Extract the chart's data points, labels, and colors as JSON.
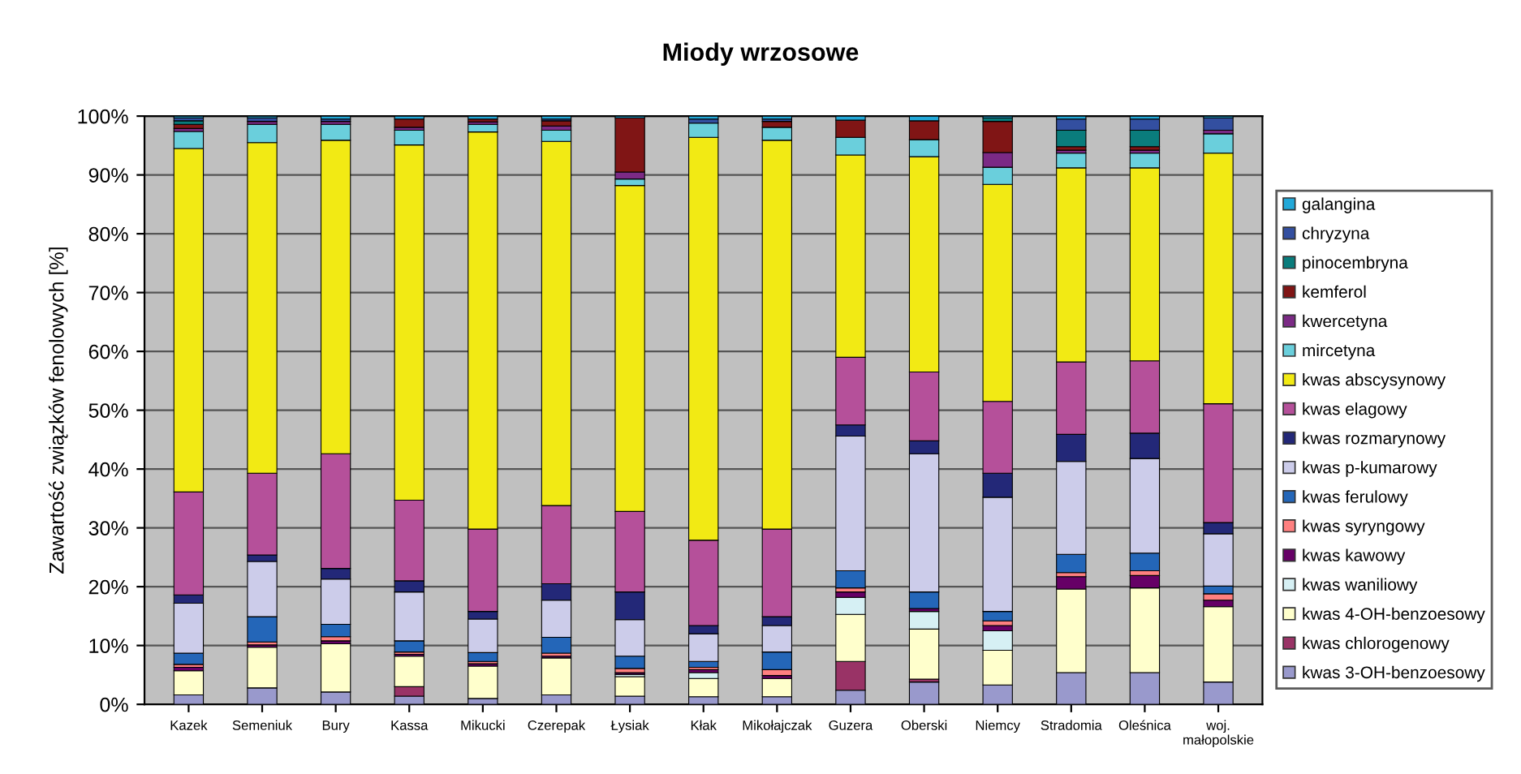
{
  "chart_data": {
    "type": "bar",
    "stacked": true,
    "title": "Miody wrzosowe",
    "ylabel": "Zawartość związków fenolowych [%]",
    "categories": [
      "Kazek",
      "Semeniuk",
      "Bury",
      "Kassa",
      "Mikucki",
      "Czerepak",
      "Łysiak",
      "Kłak",
      "Mikołajczak",
      "Guzera",
      "Oberski",
      "Niemcy",
      "Stradomia",
      "Oleśnica",
      "woj.\nmałopolskie"
    ],
    "ylim": [
      0,
      100
    ],
    "yticks": [
      {
        "value": 0,
        "label": "0%"
      },
      {
        "value": 10,
        "label": "10%"
      },
      {
        "value": 20,
        "label": "20%"
      },
      {
        "value": 30,
        "label": "30%"
      },
      {
        "value": 40,
        "label": "40%"
      },
      {
        "value": 50,
        "label": "50%"
      },
      {
        "value": 60,
        "label": "60%"
      },
      {
        "value": 70,
        "label": "70%"
      },
      {
        "value": 80,
        "label": "80%"
      },
      {
        "value": 90,
        "label": "90%"
      },
      {
        "value": 100,
        "label": "100%"
      }
    ],
    "grid": "y",
    "legend": "right",
    "series": [
      {
        "name": "kwas 3-OH-benzoesowy",
        "color": "#9999cc",
        "values": [
          1.6,
          2.8,
          2.1,
          1.4,
          1.0,
          1.6,
          1.4,
          1.3,
          1.3,
          2.4,
          3.8,
          3.3,
          5.4,
          5.4,
          3.8
        ]
      },
      {
        "name": "kwas chlorogenowy",
        "color": "#993366",
        "values": [
          null,
          null,
          null,
          1.6,
          null,
          null,
          null,
          null,
          null,
          4.9,
          0.5,
          null,
          null,
          null,
          null
        ]
      },
      {
        "name": "kwas 4-OH-benzoesowy",
        "color": "#ffffcc",
        "values": [
          4.1,
          6.9,
          8.2,
          5.2,
          5.5,
          6.3,
          3.3,
          3.1,
          3.1,
          8.0,
          8.5,
          5.9,
          14.2,
          14.4,
          12.8
        ]
      },
      {
        "name": "kwas waniliowy",
        "color": "#d6f0f4",
        "values": [
          null,
          null,
          null,
          null,
          null,
          null,
          0.4,
          1.0,
          null,
          2.9,
          3.0,
          3.3,
          null,
          null,
          null
        ]
      },
      {
        "name": "kwas kawowy",
        "color": "#660066",
        "values": [
          0.6,
          0.4,
          0.5,
          0.3,
          0.4,
          0.3,
          0.3,
          0.5,
          0.5,
          0.9,
          0.5,
          0.9,
          2.1,
          2.1,
          1.1
        ]
      },
      {
        "name": "kwas syryngowy",
        "color": "#ff8080",
        "values": [
          0.5,
          0.5,
          0.7,
          0.4,
          0.4,
          0.5,
          0.7,
          0.4,
          1.0,
          0.7,
          null,
          0.8,
          0.7,
          0.8,
          1.1
        ]
      },
      {
        "name": "kwas ferulowy",
        "color": "#2466b8",
        "values": [
          1.9,
          4.3,
          2.1,
          1.9,
          1.5,
          2.7,
          2.1,
          1.0,
          3.0,
          2.9,
          2.8,
          1.6,
          3.1,
          3.0,
          1.3
        ]
      },
      {
        "name": "kwas p-kumarowy",
        "color": "#ccccea",
        "values": [
          8.5,
          9.4,
          7.7,
          8.3,
          5.7,
          6.3,
          6.2,
          4.7,
          4.5,
          22.9,
          23.5,
          19.4,
          15.8,
          16.1,
          8.9
        ]
      },
      {
        "name": "kwas rozmarynowy",
        "color": "#232878",
        "values": [
          1.4,
          1.1,
          1.8,
          1.9,
          1.3,
          2.8,
          4.7,
          1.4,
          1.5,
          1.9,
          2.2,
          4.1,
          4.6,
          4.3,
          1.9
        ]
      },
      {
        "name": "kwas elagowy",
        "color": "#b5509a",
        "values": [
          17.5,
          13.9,
          19.5,
          13.7,
          14.0,
          13.3,
          13.7,
          14.5,
          14.9,
          11.5,
          11.7,
          12.2,
          12.3,
          12.3,
          20.2
        ]
      },
      {
        "name": "kwas abscysynowy",
        "color": "#f2ea14",
        "values": [
          58.4,
          56.2,
          53.3,
          60.4,
          67.5,
          61.9,
          55.4,
          68.5,
          66.1,
          34.4,
          36.6,
          36.9,
          33.0,
          32.8,
          42.6
        ]
      },
      {
        "name": "mircetyna",
        "color": "#6acfdc",
        "values": [
          2.9,
          3.1,
          2.7,
          2.5,
          1.3,
          1.9,
          1.1,
          2.4,
          2.2,
          3.0,
          2.9,
          2.9,
          2.5,
          2.5,
          3.3
        ]
      },
      {
        "name": "kwercetyna",
        "color": "#7b2a85",
        "values": [
          0.5,
          0.5,
          0.5,
          0.5,
          0.4,
          0.7,
          1.2,
          null,
          null,
          null,
          null,
          2.5,
          0.5,
          0.5,
          0.6
        ]
      },
      {
        "name": "kemferol",
        "color": "#801515",
        "values": [
          0.7,
          null,
          null,
          1.4,
          0.5,
          0.9,
          9.2,
          null,
          1.0,
          2.9,
          3.2,
          5.3,
          0.6,
          0.6,
          null
        ]
      },
      {
        "name": "pinocembryna",
        "color": "#0a7c7c",
        "values": [
          0.6,
          null,
          null,
          null,
          null,
          null,
          null,
          null,
          null,
          null,
          null,
          0.6,
          2.8,
          2.8,
          null
        ]
      },
      {
        "name": "chryzyna",
        "color": "#334fa0",
        "values": [
          0.5,
          0.6,
          0.4,
          null,
          null,
          0.3,
          null,
          0.7,
          0.4,
          null,
          null,
          null,
          1.9,
          1.9,
          2.1
        ]
      },
      {
        "name": "galangina",
        "color": "#22a8d8",
        "values": [
          0.3,
          0.3,
          0.5,
          0.5,
          0.5,
          0.5,
          0.3,
          0.5,
          0.5,
          0.7,
          0.8,
          0.3,
          0.5,
          0.5,
          0.3
        ]
      }
    ]
  }
}
